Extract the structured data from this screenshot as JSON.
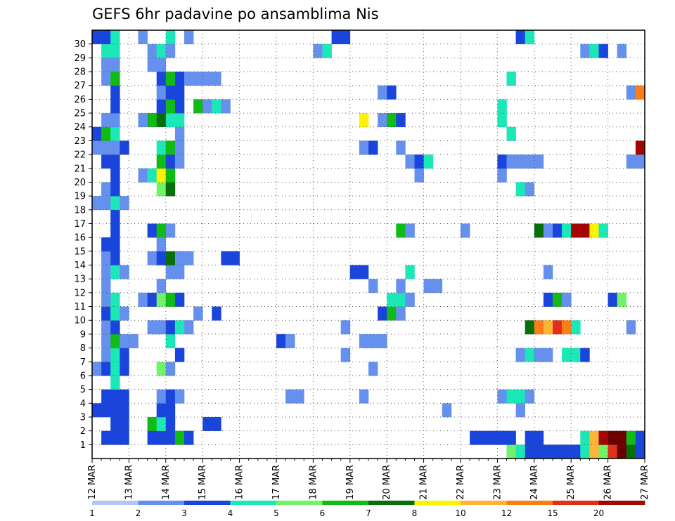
{
  "chart_data": {
    "type": "heatmap",
    "title": "GEFS 6hr padavine po ansamblima Nis",
    "xlabel": "",
    "ylabel": "",
    "x_tick_labels": [
      "12 MAR",
      "13 MAR",
      "14 MAR",
      "15 MAR",
      "16 MAR",
      "17 MAR",
      "18 MAR",
      "19 MAR",
      "20 MAR",
      "21 MAR",
      "22 MAR",
      "23 MAR",
      "24 MAR",
      "25 MAR",
      "26 MAR",
      "27 MAR"
    ],
    "y_tick_labels": [
      "1",
      "2",
      "3",
      "4",
      "5",
      "6",
      "7",
      "8",
      "9",
      "10",
      "11",
      "12",
      "13",
      "14",
      "15",
      "16",
      "17",
      "18",
      "19",
      "20",
      "21",
      "22",
      "23",
      "24",
      "25",
      "26",
      "27",
      "28",
      "29",
      "30"
    ],
    "x_unit": "6-hour step from 12 MAR 00Z",
    "x_steps": 60,
    "ylim": [
      0,
      30
    ],
    "grid": true,
    "colorbar": {
      "levels": [
        1,
        2,
        3,
        4,
        5,
        6,
        7,
        8,
        10,
        12,
        15,
        20
      ],
      "colors": [
        "#b4c5f5",
        "#6690ee",
        "#1a45dc",
        "#1ce8b7",
        "#72f267",
        "#11bb16",
        "#066f0a",
        "#fff203",
        "#fdb437",
        "#fb7e19",
        "#e0301a",
        "#a10601",
        "#6a0000"
      ]
    },
    "series_rows": [
      {
        "row": 0,
        "cells": [
          [
            45,
            4
          ],
          [
            46,
            3
          ],
          [
            47,
            2
          ],
          [
            48,
            2
          ],
          [
            49,
            2
          ],
          [
            50,
            2
          ],
          [
            51,
            2
          ],
          [
            52,
            2
          ],
          [
            53,
            3
          ],
          [
            54,
            8
          ],
          [
            55,
            4
          ],
          [
            56,
            10
          ],
          [
            57,
            12
          ],
          [
            58,
            6
          ],
          [
            59,
            2
          ]
        ]
      },
      {
        "row": 1,
        "cells": [
          [
            1,
            2
          ],
          [
            2,
            2
          ],
          [
            3,
            2
          ],
          [
            6,
            2
          ],
          [
            7,
            2
          ],
          [
            8,
            2
          ],
          [
            9,
            5
          ],
          [
            10,
            2
          ],
          [
            41,
            2
          ],
          [
            42,
            2
          ],
          [
            43,
            2
          ],
          [
            44,
            2
          ],
          [
            45,
            2
          ],
          [
            47,
            2
          ],
          [
            48,
            2
          ],
          [
            53,
            3
          ],
          [
            54,
            8
          ],
          [
            55,
            11
          ],
          [
            56,
            12
          ],
          [
            57,
            12
          ],
          [
            58,
            5
          ],
          [
            59,
            2
          ]
        ]
      },
      {
        "row": 2,
        "cells": [
          [
            2,
            2
          ],
          [
            3,
            2
          ],
          [
            6,
            5
          ],
          [
            7,
            3
          ],
          [
            8,
            2
          ],
          [
            12,
            2
          ],
          [
            13,
            2
          ]
        ]
      },
      {
        "row": 3,
        "cells": [
          [
            0,
            2
          ],
          [
            1,
            2
          ],
          [
            2,
            2
          ],
          [
            3,
            2
          ],
          [
            7,
            2
          ],
          [
            8,
            2
          ],
          [
            38,
            1
          ],
          [
            46,
            1
          ]
        ]
      },
      {
        "row": 4,
        "cells": [
          [
            1,
            2
          ],
          [
            2,
            2
          ],
          [
            3,
            2
          ],
          [
            7,
            1
          ],
          [
            8,
            2
          ],
          [
            9,
            1
          ],
          [
            21,
            1
          ],
          [
            22,
            1
          ],
          [
            29,
            1
          ],
          [
            44,
            1
          ],
          [
            45,
            3
          ],
          [
            46,
            3
          ],
          [
            47,
            1
          ]
        ]
      },
      {
        "row": 5,
        "cells": [
          [
            2,
            3
          ]
        ]
      },
      {
        "row": 6,
        "cells": [
          [
            0,
            1
          ],
          [
            1,
            2
          ],
          [
            2,
            3
          ],
          [
            3,
            2
          ],
          [
            7,
            4
          ],
          [
            8,
            1
          ],
          [
            30,
            1
          ]
        ]
      },
      {
        "row": 7,
        "cells": [
          [
            1,
            1
          ],
          [
            2,
            3
          ],
          [
            3,
            2
          ],
          [
            9,
            2
          ],
          [
            27,
            1
          ],
          [
            46,
            1
          ],
          [
            47,
            3
          ],
          [
            48,
            1
          ],
          [
            49,
            1
          ],
          [
            51,
            3
          ],
          [
            52,
            3
          ],
          [
            53,
            2
          ]
        ]
      },
      {
        "row": 8,
        "cells": [
          [
            1,
            1
          ],
          [
            2,
            5
          ],
          [
            3,
            1
          ],
          [
            4,
            1
          ],
          [
            8,
            3
          ],
          [
            20,
            2
          ],
          [
            21,
            1
          ],
          [
            29,
            1
          ],
          [
            30,
            1
          ],
          [
            31,
            1
          ]
        ]
      },
      {
        "row": 9,
        "cells": [
          [
            1,
            1
          ],
          [
            2,
            2
          ],
          [
            6,
            1
          ],
          [
            7,
            1
          ],
          [
            8,
            2
          ],
          [
            9,
            3
          ],
          [
            10,
            1
          ],
          [
            27,
            1
          ],
          [
            47,
            6
          ],
          [
            48,
            9
          ],
          [
            49,
            8
          ],
          [
            50,
            10
          ],
          [
            51,
            9
          ],
          [
            52,
            3
          ],
          [
            58,
            1
          ]
        ]
      },
      {
        "row": 10,
        "cells": [
          [
            1,
            2
          ],
          [
            2,
            3
          ],
          [
            3,
            1
          ],
          [
            11,
            1
          ],
          [
            13,
            2
          ],
          [
            31,
            2
          ],
          [
            32,
            5
          ],
          [
            33,
            1
          ]
        ]
      },
      {
        "row": 11,
        "cells": [
          [
            1,
            1
          ],
          [
            2,
            3
          ],
          [
            5,
            1
          ],
          [
            6,
            2
          ],
          [
            7,
            4
          ],
          [
            8,
            5
          ],
          [
            9,
            2
          ],
          [
            32,
            3
          ],
          [
            33,
            3
          ],
          [
            34,
            1
          ],
          [
            49,
            2
          ],
          [
            50,
            5
          ],
          [
            51,
            1
          ],
          [
            56,
            2
          ],
          [
            57,
            4
          ]
        ]
      },
      {
        "row": 12,
        "cells": [
          [
            1,
            1
          ],
          [
            7,
            1
          ],
          [
            30,
            1
          ],
          [
            33,
            1
          ],
          [
            36,
            1
          ],
          [
            37,
            1
          ]
        ]
      },
      {
        "row": 13,
        "cells": [
          [
            1,
            1
          ],
          [
            2,
            3
          ],
          [
            3,
            1
          ],
          [
            8,
            1
          ],
          [
            9,
            1
          ],
          [
            28,
            2
          ],
          [
            29,
            2
          ],
          [
            34,
            3
          ],
          [
            49,
            1
          ]
        ]
      },
      {
        "row": 14,
        "cells": [
          [
            1,
            1
          ],
          [
            2,
            2
          ],
          [
            6,
            1
          ],
          [
            7,
            2
          ],
          [
            8,
            6
          ],
          [
            9,
            1
          ],
          [
            10,
            1
          ],
          [
            14,
            2
          ],
          [
            15,
            2
          ]
        ]
      },
      {
        "row": 15,
        "cells": [
          [
            1,
            2
          ],
          [
            2,
            2
          ],
          [
            7,
            1
          ]
        ]
      },
      {
        "row": 16,
        "cells": [
          [
            2,
            2
          ],
          [
            6,
            2
          ],
          [
            7,
            5
          ],
          [
            8,
            1
          ],
          [
            33,
            5
          ],
          [
            34,
            1
          ],
          [
            40,
            1
          ],
          [
            48,
            6
          ],
          [
            49,
            1
          ],
          [
            50,
            2
          ],
          [
            51,
            3
          ],
          [
            52,
            11
          ],
          [
            53,
            11
          ],
          [
            54,
            7
          ],
          [
            55,
            3
          ]
        ]
      },
      {
        "row": 17,
        "cells": [
          [
            2,
            2
          ]
        ]
      },
      {
        "row": 18,
        "cells": [
          [
            0,
            1
          ],
          [
            1,
            1
          ],
          [
            2,
            3
          ],
          [
            3,
            1
          ]
        ]
      },
      {
        "row": 19,
        "cells": [
          [
            1,
            1
          ],
          [
            2,
            2
          ],
          [
            7,
            4
          ],
          [
            8,
            6
          ],
          [
            46,
            3
          ],
          [
            47,
            1
          ]
        ]
      },
      {
        "row": 20,
        "cells": [
          [
            2,
            2
          ],
          [
            5,
            1
          ],
          [
            6,
            3
          ],
          [
            7,
            7
          ],
          [
            8,
            5
          ],
          [
            35,
            1
          ],
          [
            44,
            1
          ]
        ]
      },
      {
        "row": 21,
        "cells": [
          [
            1,
            2
          ],
          [
            2,
            2
          ],
          [
            7,
            5
          ],
          [
            8,
            2
          ],
          [
            9,
            1
          ],
          [
            34,
            1
          ],
          [
            35,
            2
          ],
          [
            36,
            3
          ],
          [
            44,
            2
          ],
          [
            45,
            1
          ],
          [
            46,
            1
          ],
          [
            47,
            1
          ],
          [
            48,
            1
          ],
          [
            58,
            1
          ],
          [
            59,
            1
          ]
        ]
      },
      {
        "row": 22,
        "cells": [
          [
            0,
            1
          ],
          [
            1,
            1
          ],
          [
            2,
            1
          ],
          [
            3,
            2
          ],
          [
            7,
            3
          ],
          [
            8,
            5
          ],
          [
            9,
            1
          ],
          [
            29,
            1
          ],
          [
            30,
            2
          ],
          [
            33,
            1
          ],
          [
            59,
            11
          ]
        ]
      },
      {
        "row": 23,
        "cells": [
          [
            0,
            2
          ],
          [
            1,
            5
          ],
          [
            2,
            3
          ],
          [
            9,
            1
          ],
          [
            45,
            3
          ]
        ]
      },
      {
        "row": 24,
        "cells": [
          [
            1,
            1
          ],
          [
            2,
            1
          ],
          [
            5,
            1
          ],
          [
            6,
            5
          ],
          [
            7,
            6
          ],
          [
            8,
            3
          ],
          [
            9,
            3
          ],
          [
            29,
            7
          ],
          [
            31,
            1
          ],
          [
            32,
            5
          ],
          [
            33,
            2
          ],
          [
            44,
            3
          ]
        ]
      },
      {
        "row": 25,
        "cells": [
          [
            2,
            2
          ],
          [
            7,
            2
          ],
          [
            8,
            5
          ],
          [
            9,
            2
          ],
          [
            11,
            5
          ],
          [
            12,
            1
          ],
          [
            13,
            3
          ],
          [
            14,
            1
          ],
          [
            44,
            3
          ]
        ]
      },
      {
        "row": 26,
        "cells": [
          [
            2,
            2
          ],
          [
            7,
            1
          ],
          [
            8,
            2
          ],
          [
            9,
            2
          ],
          [
            31,
            1
          ],
          [
            32,
            2
          ],
          [
            58,
            1
          ],
          [
            59,
            9
          ]
        ]
      },
      {
        "row": 27,
        "cells": [
          [
            1,
            1
          ],
          [
            2,
            5
          ],
          [
            7,
            2
          ],
          [
            8,
            5
          ],
          [
            9,
            2
          ],
          [
            10,
            1
          ],
          [
            11,
            1
          ],
          [
            12,
            1
          ],
          [
            13,
            1
          ],
          [
            45,
            3
          ]
        ]
      },
      {
        "row": 28,
        "cells": [
          [
            1,
            1
          ],
          [
            2,
            1
          ],
          [
            6,
            1
          ],
          [
            7,
            1
          ]
        ]
      },
      {
        "row": 29,
        "cells": [
          [
            1,
            3
          ],
          [
            2,
            3
          ],
          [
            6,
            1
          ],
          [
            7,
            3
          ],
          [
            8,
            1
          ],
          [
            24,
            1
          ],
          [
            25,
            3
          ],
          [
            53,
            1
          ],
          [
            54,
            3
          ],
          [
            55,
            2
          ],
          [
            57,
            1
          ]
        ]
      },
      {
        "row": 30,
        "cells": [
          [
            0,
            2
          ],
          [
            1,
            2
          ],
          [
            2,
            3
          ],
          [
            5,
            1
          ],
          [
            8,
            3
          ],
          [
            10,
            1
          ],
          [
            26,
            2
          ],
          [
            27,
            2
          ],
          [
            46,
            2
          ],
          [
            47,
            3
          ]
        ]
      }
    ]
  }
}
